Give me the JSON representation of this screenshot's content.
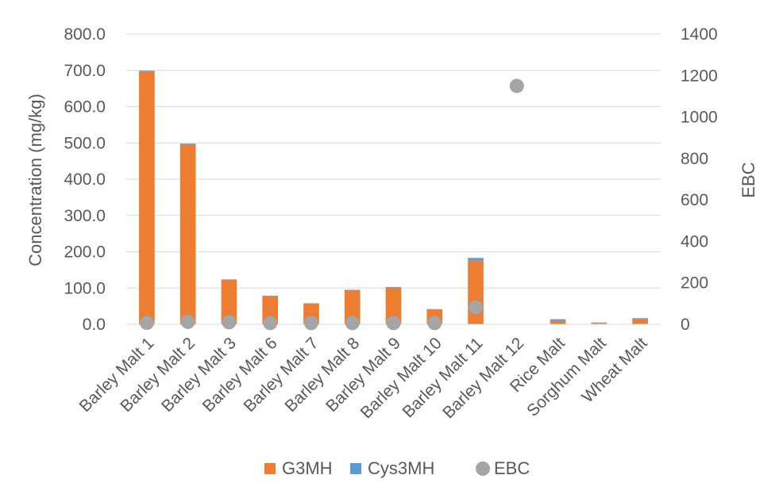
{
  "chart_data": {
    "type": "bar",
    "stacked": true,
    "categories": [
      "Barley Malt 1",
      "Barley Malt 2",
      "Barley Malt 3",
      "Barley Malt 6",
      "Barley Malt 7",
      "Barley Malt 8",
      "Barley Malt 9",
      "Barley Malt 10",
      "Barley Malt 11",
      "Barley Malt 12",
      "Rice Malt",
      "Sorghum Malt",
      "Wheat Malt"
    ],
    "series": [
      {
        "name": "G3MH",
        "kind": "bar",
        "axis": "left",
        "color": "#ED7D31",
        "values": [
          697,
          495,
          123,
          78,
          57,
          93,
          101,
          41,
          175,
          0,
          9,
          4,
          14
        ]
      },
      {
        "name": "Cys3MH",
        "kind": "bar",
        "axis": "left",
        "color": "#5B9BD5",
        "values": [
          2,
          3,
          1,
          1,
          1,
          2,
          2,
          1,
          8,
          0,
          5,
          1,
          3
        ]
      },
      {
        "name": "EBC",
        "kind": "scatter",
        "axis": "right",
        "color": "#A5A5A5",
        "values": [
          7,
          12,
          10,
          6,
          6,
          6,
          6,
          6,
          82,
          1150,
          null,
          null,
          null
        ]
      }
    ],
    "left_axis": {
      "title": "Concentration (mg/kg)",
      "min": 0,
      "max": 800,
      "step": 100,
      "tick_labels": [
        "0.0",
        "100.0",
        "200.0",
        "300.0",
        "400.0",
        "500.0",
        "600.0",
        "700.0",
        "800.0"
      ]
    },
    "right_axis": {
      "title": "EBC",
      "min": 0,
      "max": 1400,
      "step": 200,
      "tick_labels": [
        "0",
        "200",
        "400",
        "600",
        "800",
        "1000",
        "1200",
        "1400"
      ]
    },
    "grid": true,
    "legend_position": "bottom",
    "legend": [
      "G3MH",
      "Cys3MH",
      "EBC"
    ]
  }
}
